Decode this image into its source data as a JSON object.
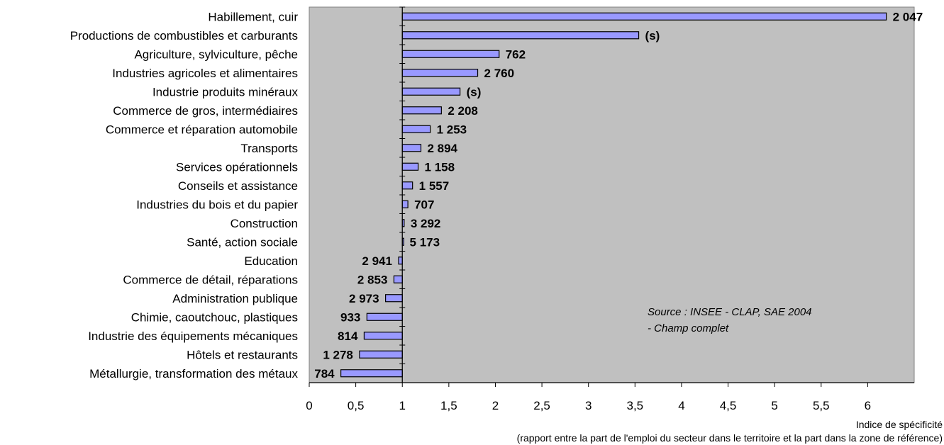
{
  "chart_data": {
    "type": "bar",
    "orientation": "horizontal",
    "baseline": 1,
    "xlim": [
      0,
      6.5
    ],
    "x_ticks": [
      "0",
      "0,5",
      "1",
      "1,5",
      "2",
      "2,5",
      "3",
      "3,5",
      "4",
      "4,5",
      "5",
      "5,5",
      "6"
    ],
    "x_tick_values": [
      0,
      0.5,
      1,
      1.5,
      2,
      2.5,
      3,
      3.5,
      4,
      4.5,
      5,
      5.5,
      6
    ],
    "xlabel": "Indice de spécificité",
    "xlabel_sub": "(rapport entre la part de l'emploi du secteur dans le territoire et la part dans la zone de référence)",
    "categories": [
      "Habillement, cuir",
      "Productions de combustibles et carburants",
      "Agriculture, sylviculture, pêche",
      "Industries agricoles et alimentaires",
      "Industrie produits minéraux",
      "Commerce de gros, intermédiaires",
      "Commerce et réparation automobile",
      "Transports",
      "Services opérationnels",
      "Conseils et assistance",
      "Industries du bois et du papier",
      "Construction",
      "Santé, action sociale",
      "Education",
      "Commerce de détail, réparations",
      "Administration publique",
      "Chimie, caoutchouc, plastiques",
      "Industrie des équipements mécaniques",
      "Hôtels et restaurants",
      "Métallurgie, transformation des métaux"
    ],
    "values": [
      6.2,
      3.54,
      2.04,
      1.81,
      1.62,
      1.42,
      1.3,
      1.2,
      1.17,
      1.11,
      1.06,
      1.02,
      1.01,
      0.96,
      0.91,
      0.82,
      0.62,
      0.59,
      0.54,
      0.34
    ],
    "data_labels": [
      "2 047",
      "(s)",
      "762",
      "2 760",
      "(s)",
      "2 208",
      "1 253",
      "2 894",
      "1 158",
      "1 557",
      "707",
      "3 292",
      "5 173",
      "2 941",
      "2 853",
      "2 973",
      "933",
      "814",
      "1 278",
      "784"
    ],
    "colors": {
      "bar_fill": "#9999ff",
      "bar_stroke": "#000000",
      "plot_bg": "#c0c0c0",
      "axis": "#000000"
    },
    "grid": false,
    "legend": "none"
  },
  "source_note": {
    "line1": "Source : INSEE - CLAP, SAE 2004",
    "line2": "- Champ complet"
  }
}
